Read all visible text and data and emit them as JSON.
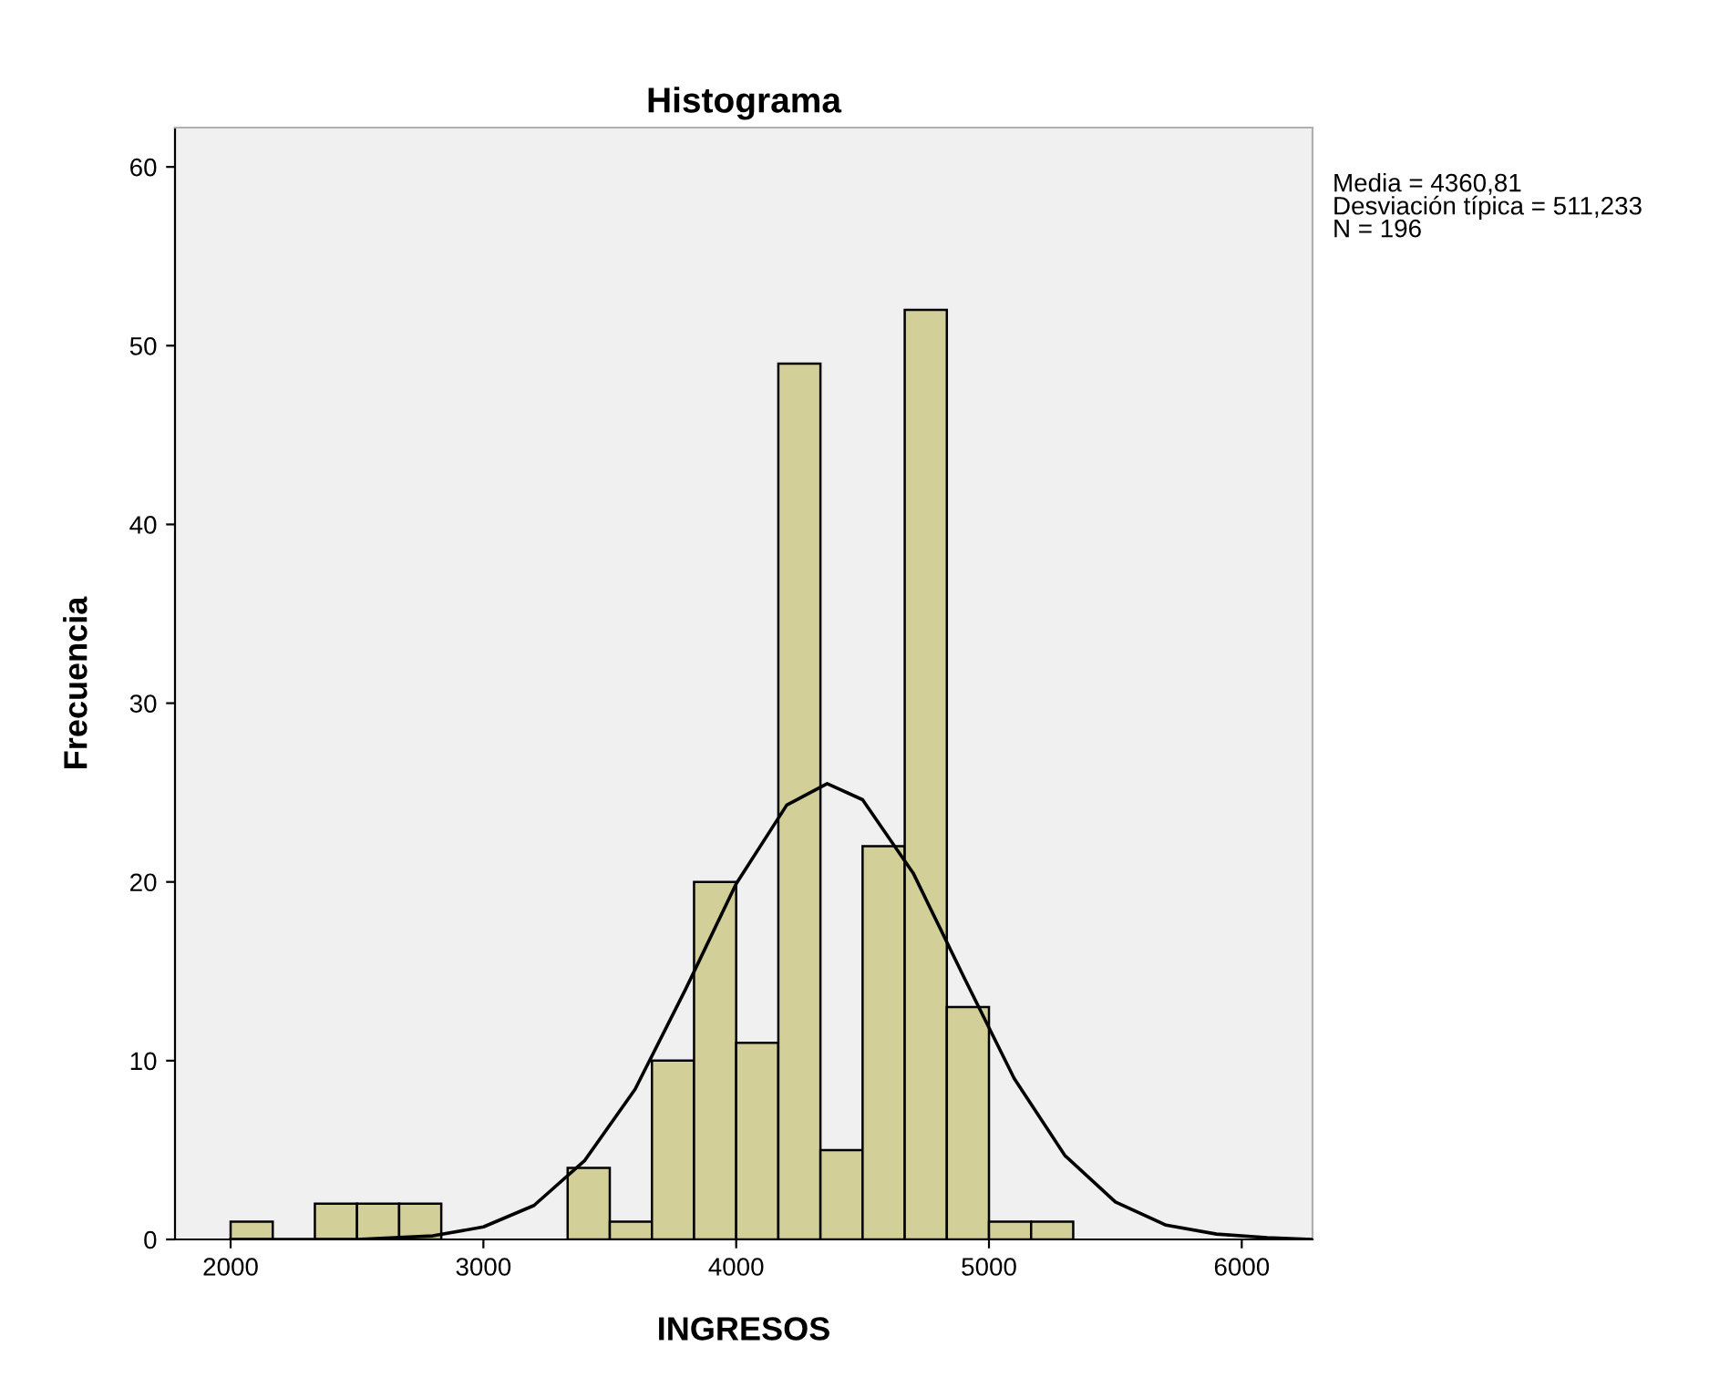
{
  "chart_data": {
    "type": "histogram",
    "title": "Histograma",
    "xlabel": "INGRESOS",
    "ylabel": "Frecuencia",
    "bins": [
      2000,
      2166.7,
      2333.3,
      2500,
      2666.7,
      2833.3,
      3000,
      3166.7,
      3333.3,
      3500,
      3666.7,
      3833.3,
      4000,
      4166.7,
      4333.3,
      4500,
      4666.7,
      4833.3,
      5000,
      5166.7,
      5333.3
    ],
    "values": [
      1,
      0,
      2,
      2,
      2,
      0,
      0,
      0,
      4,
      1,
      10,
      20,
      11,
      49,
      5,
      22,
      52,
      13,
      1,
      1
    ],
    "color": "#d3cf98",
    "series": [
      {
        "type": "line",
        "color": "#000000",
        "x": [
          2000,
          2500,
          2800,
          3000,
          3200,
          3400,
          3600,
          3800,
          4000,
          4200,
          4360,
          4500,
          4700,
          4900,
          5100,
          5300,
          5500,
          5700,
          5900,
          6100,
          6280
        ],
        "values": [
          0,
          0,
          0.2,
          0.7,
          1.9,
          4.4,
          8.4,
          14,
          19.9,
          24.3,
          25.5,
          24.6,
          20.5,
          14.7,
          9,
          4.7,
          2.1,
          0.8,
          0.3,
          0.1,
          0
        ]
      }
    ],
    "xlim": [
      1780,
      6280
    ],
    "ylim": [
      0,
      62.2
    ],
    "xticks": [
      2000,
      3000,
      4000,
      5000,
      6000
    ],
    "yticks": [
      0,
      10,
      20,
      30,
      40,
      50,
      60
    ],
    "grid": false,
    "annotations": [
      "Media = 4360,81\nDesviación típica = 511,233\nN = 196"
    ]
  }
}
